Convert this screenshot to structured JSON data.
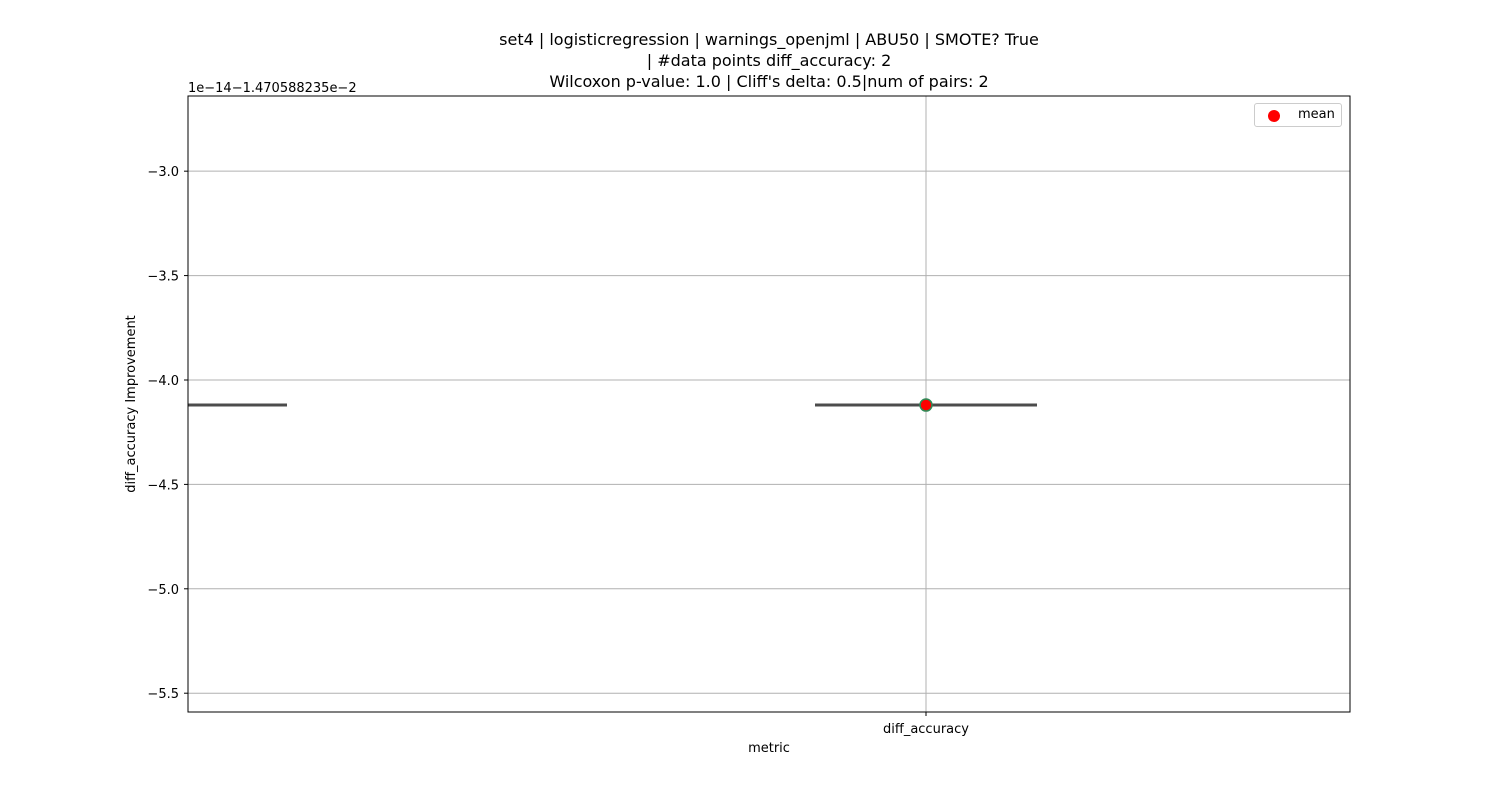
{
  "chart_data": {
    "type": "box",
    "title_lines": [
      "set4 | logisticregression | warnings_openjml | ABU50 | SMOTE? True",
      "| #data points diff_accuracy: 2",
      "Wilcoxon p-value: 1.0 | Cliff's delta: 0.5|num of pairs: 2"
    ],
    "xlabel": "metric",
    "ylabel": "diff_accuracy Improvement",
    "offset_text": "1e−14−1.470588235e−2",
    "categories": [
      "",
      "diff_accuracy"
    ],
    "yticks": [
      -3.0,
      -3.5,
      -4.0,
      -4.5,
      -5.0,
      -5.5
    ],
    "ytick_labels": [
      "−3.0",
      "−3.5",
      "−4.0",
      "−4.5",
      "−5.0",
      "−5.5"
    ],
    "ylim": [
      -5.59,
      -2.64
    ],
    "series": [
      {
        "category_index": 0,
        "median": -4.12
      },
      {
        "category_index": 1,
        "median": -4.12,
        "mean": -4.12
      }
    ],
    "legend": {
      "entries": [
        "mean"
      ],
      "placement": "upper right",
      "marker_color": "#ff0000"
    },
    "grid": true,
    "box_line_color": "#4c4c4c",
    "mean_marker_color": "#ff0000",
    "mean_marker_edge_color": "#2e8b57"
  }
}
